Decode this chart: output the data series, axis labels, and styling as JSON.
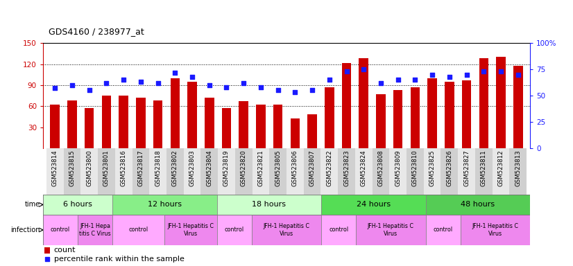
{
  "title": "GDS4160 / 238977_at",
  "samples": [
    "GSM523814",
    "GSM523815",
    "GSM523800",
    "GSM523801",
    "GSM523816",
    "GSM523817",
    "GSM523818",
    "GSM523802",
    "GSM523803",
    "GSM523804",
    "GSM523819",
    "GSM523820",
    "GSM523821",
    "GSM523805",
    "GSM523806",
    "GSM523807",
    "GSM523822",
    "GSM523823",
    "GSM523824",
    "GSM523808",
    "GSM523809",
    "GSM523810",
    "GSM523825",
    "GSM523826",
    "GSM523827",
    "GSM523811",
    "GSM523812",
    "GSM523813"
  ],
  "counts": [
    62,
    68,
    57,
    75,
    75,
    72,
    68,
    100,
    95,
    72,
    57,
    67,
    62,
    62,
    42,
    48,
    87,
    122,
    128,
    77,
    83,
    87,
    100,
    95,
    97,
    128,
    130,
    118
  ],
  "percentiles": [
    57,
    60,
    55,
    62,
    65,
    63,
    62,
    72,
    68,
    60,
    58,
    62,
    58,
    55,
    53,
    55,
    65,
    73,
    75,
    62,
    65,
    65,
    70,
    68,
    70,
    73,
    73,
    70
  ],
  "ylim_left": [
    0,
    150
  ],
  "ylim_right": [
    0,
    100
  ],
  "yticks_left": [
    30,
    60,
    90,
    120,
    150
  ],
  "yticks_right": [
    0,
    25,
    50,
    75,
    100
  ],
  "bar_color": "#cc0000",
  "dot_color": "#1a1aff",
  "time_groups": [
    {
      "label": "6 hours",
      "start": 0,
      "end": 4,
      "color": "#ccffcc"
    },
    {
      "label": "12 hours",
      "start": 4,
      "end": 10,
      "color": "#88ee88"
    },
    {
      "label": "18 hours",
      "start": 10,
      "end": 16,
      "color": "#ccffcc"
    },
    {
      "label": "24 hours",
      "start": 16,
      "end": 22,
      "color": "#55dd55"
    },
    {
      "label": "48 hours",
      "start": 22,
      "end": 28,
      "color": "#55cc55"
    }
  ],
  "infection_groups": [
    {
      "label": "control",
      "start": 0,
      "end": 2,
      "color": "#ffaaff"
    },
    {
      "label": "JFH-1 Hepa\ntitis C Virus",
      "start": 2,
      "end": 4,
      "color": "#ee88ee"
    },
    {
      "label": "control",
      "start": 4,
      "end": 7,
      "color": "#ffaaff"
    },
    {
      "label": "JFH-1 Hepatitis C\nVirus",
      "start": 7,
      "end": 10,
      "color": "#ee88ee"
    },
    {
      "label": "control",
      "start": 10,
      "end": 12,
      "color": "#ffaaff"
    },
    {
      "label": "JFH-1 Hepatitis C\nVirus",
      "start": 12,
      "end": 16,
      "color": "#ee88ee"
    },
    {
      "label": "control",
      "start": 16,
      "end": 18,
      "color": "#ffaaff"
    },
    {
      "label": "JFH-1 Hepatitis C\nVirus",
      "start": 18,
      "end": 22,
      "color": "#ee88ee"
    },
    {
      "label": "control",
      "start": 22,
      "end": 24,
      "color": "#ffaaff"
    },
    {
      "label": "JFH-1 Hepatitis C\nVirus",
      "start": 24,
      "end": 28,
      "color": "#ee88ee"
    }
  ],
  "legend_count_label": "count",
  "legend_percentile_label": "percentile rank within the sample",
  "background_color": "#ffffff",
  "left_axis_color": "#cc0000",
  "right_axis_color": "#1a1aff",
  "grid_dotted_vals": [
    60,
    90,
    120
  ]
}
